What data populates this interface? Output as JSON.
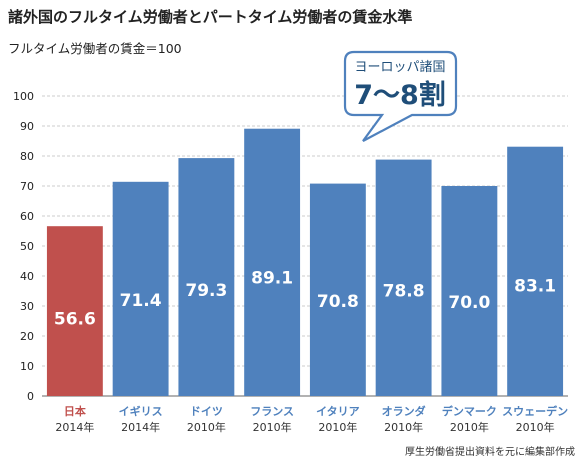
{
  "title": "諸外国のフルタイム労働者とパートタイム労働者の賃金水準",
  "subtitle": "フルタイム労働者の賃金＝100",
  "source": "厚生労働省提出資料を元に編集部作成",
  "callout": {
    "line1": "ヨーロッパ諸国",
    "line2": "7～8割"
  },
  "colors": {
    "highlight": "#c0504d",
    "bar": "#4f81bd",
    "callout_border": "#4f81bd",
    "callout_text": "#1f4e79"
  },
  "chart_data": {
    "type": "bar",
    "title": "諸外国のフルタイム労働者とパートタイム労働者の賃金水準",
    "ylabel": "フルタイム労働者の賃金＝100",
    "ylim": [
      0,
      100
    ],
    "yticks": [
      0,
      10,
      20,
      30,
      40,
      50,
      60,
      70,
      80,
      90,
      100
    ],
    "categories": [
      "日本",
      "イギリス",
      "ドイツ",
      "フランス",
      "イタリア",
      "オランダ",
      "デンマーク",
      "スウェーデン"
    ],
    "years": [
      "2014年",
      "2014年",
      "2010年",
      "2010年",
      "2010年",
      "2010年",
      "2010年",
      "2010年"
    ],
    "values": [
      56.6,
      71.4,
      79.3,
      89.1,
      70.8,
      78.8,
      70.0,
      83.1
    ],
    "value_labels": [
      "56.6",
      "71.4",
      "79.3",
      "89.1",
      "70.8",
      "78.8",
      "70.0",
      "83.1"
    ],
    "highlight_index": 0,
    "grid": true
  }
}
